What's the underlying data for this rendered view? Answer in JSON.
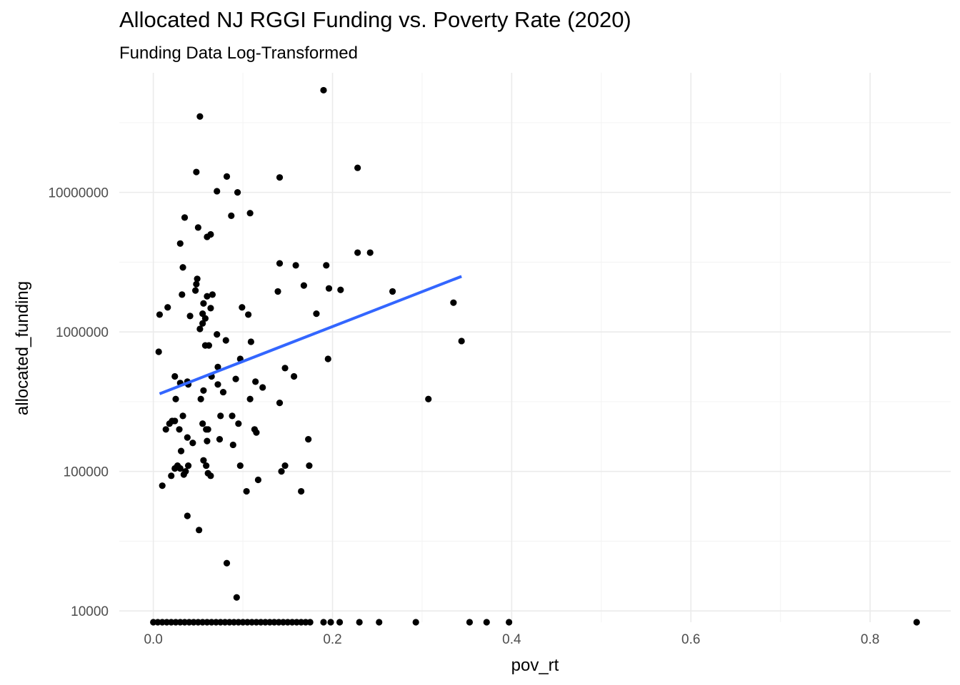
{
  "chart_data": {
    "type": "scatter",
    "title": "Allocated NJ RGGI Funding vs. Poverty Rate (2020)",
    "subtitle": "Funding Data Log-Transformed",
    "xlabel": "pov_rt",
    "ylabel": "allocated_funding",
    "x_scale": "linear",
    "y_scale": "log10",
    "xlim": [
      -0.038,
      0.89
    ],
    "ylim": [
      8300,
      72000000
    ],
    "x_ticks": [
      0.0,
      0.2,
      0.4,
      0.6,
      0.8
    ],
    "x_tick_labels": [
      "0.0",
      "0.2",
      "0.4",
      "0.6",
      "0.8"
    ],
    "y_ticks": [
      10000,
      100000,
      1000000,
      10000000
    ],
    "y_tick_labels": [
      "10000",
      "100000",
      "1000000",
      "10000000"
    ],
    "grid": true,
    "colors": {
      "points": "#000000",
      "trend_line": "#3366ff",
      "grid_major": "#ebebeb",
      "grid_minor": "#f3f3f3"
    },
    "series": [
      {
        "points": [
          [
            0.19,
            54000000
          ],
          [
            0.052,
            35000000
          ],
          [
            0.228,
            15000000
          ],
          [
            0.048,
            14000000
          ],
          [
            0.082,
            13000000
          ],
          [
            0.141,
            12800000
          ],
          [
            0.071,
            10200000
          ],
          [
            0.094,
            10000000
          ],
          [
            0.108,
            7100000
          ],
          [
            0.087,
            6800000
          ],
          [
            0.035,
            6600000
          ],
          [
            0.05,
            5600000
          ],
          [
            0.064,
            5000000
          ],
          [
            0.06,
            4800000
          ],
          [
            0.03,
            4300000
          ],
          [
            0.228,
            3700000
          ],
          [
            0.242,
            3700000
          ],
          [
            0.141,
            3100000
          ],
          [
            0.159,
            3000000
          ],
          [
            0.193,
            3000000
          ],
          [
            0.033,
            2900000
          ],
          [
            0.049,
            2400000
          ],
          [
            0.048,
            2200000
          ],
          [
            0.168,
            2150000
          ],
          [
            0.196,
            2050000
          ],
          [
            0.209,
            2000000
          ],
          [
            0.047,
            1980000
          ],
          [
            0.139,
            1950000
          ],
          [
            0.267,
            1950000
          ],
          [
            0.032,
            1850000
          ],
          [
            0.066,
            1850000
          ],
          [
            0.06,
            1800000
          ],
          [
            0.056,
            1600000
          ],
          [
            0.335,
            1620000
          ],
          [
            0.016,
            1500000
          ],
          [
            0.064,
            1480000
          ],
          [
            0.099,
            1500000
          ],
          [
            0.055,
            1350000
          ],
          [
            0.007,
            1330000
          ],
          [
            0.106,
            1330000
          ],
          [
            0.041,
            1300000
          ],
          [
            0.058,
            1250000
          ],
          [
            0.182,
            1350000
          ],
          [
            0.055,
            1150000
          ],
          [
            0.052,
            1050000
          ],
          [
            0.071,
            960000
          ],
          [
            0.081,
            870000
          ],
          [
            0.109,
            850000
          ],
          [
            0.344,
            860000
          ],
          [
            0.058,
            800000
          ],
          [
            0.062,
            800000
          ],
          [
            0.006,
            720000
          ],
          [
            0.097,
            640000
          ],
          [
            0.195,
            640000
          ],
          [
            0.072,
            560000
          ],
          [
            0.147,
            550000
          ],
          [
            0.065,
            480000
          ],
          [
            0.157,
            480000
          ],
          [
            0.024,
            480000
          ],
          [
            0.092,
            460000
          ],
          [
            0.114,
            440000
          ],
          [
            0.03,
            430000
          ],
          [
            0.038,
            440000
          ],
          [
            0.039,
            420000
          ],
          [
            0.072,
            420000
          ],
          [
            0.122,
            400000
          ],
          [
            0.056,
            380000
          ],
          [
            0.078,
            370000
          ],
          [
            0.053,
            330000
          ],
          [
            0.025,
            330000
          ],
          [
            0.108,
            330000
          ],
          [
            0.307,
            330000
          ],
          [
            0.141,
            310000
          ],
          [
            0.033,
            250000
          ],
          [
            0.075,
            250000
          ],
          [
            0.088,
            250000
          ],
          [
            0.021,
            230000
          ],
          [
            0.024,
            230000
          ],
          [
            0.018,
            220000
          ],
          [
            0.055,
            220000
          ],
          [
            0.095,
            220000
          ],
          [
            0.014,
            200000
          ],
          [
            0.029,
            200000
          ],
          [
            0.059,
            200000
          ],
          [
            0.061,
            200000
          ],
          [
            0.113,
            200000
          ],
          [
            0.115,
            190000
          ],
          [
            0.038,
            175000
          ],
          [
            0.074,
            170000
          ],
          [
            0.173,
            170000
          ],
          [
            0.06,
            165000
          ],
          [
            0.044,
            160000
          ],
          [
            0.089,
            155000
          ],
          [
            0.031,
            140000
          ],
          [
            0.056,
            120000
          ],
          [
            0.024,
            105000
          ],
          [
            0.027,
            110000
          ],
          [
            0.039,
            110000
          ],
          [
            0.059,
            110000
          ],
          [
            0.097,
            110000
          ],
          [
            0.147,
            110000
          ],
          [
            0.174,
            110000
          ],
          [
            0.03,
            105000
          ],
          [
            0.036,
            100000
          ],
          [
            0.143,
            100000
          ],
          [
            0.061,
            97000
          ],
          [
            0.034,
            95000
          ],
          [
            0.02,
            93000
          ],
          [
            0.064,
            93000
          ],
          [
            0.117,
            87000
          ],
          [
            0.01,
            79000
          ],
          [
            0.104,
            72000
          ],
          [
            0.165,
            72000
          ],
          [
            0.038,
            48000
          ],
          [
            0.051,
            38000
          ],
          [
            0.082,
            22000
          ],
          [
            0.093,
            12500
          ],
          [
            0.0,
            8300
          ],
          [
            0.005,
            8300
          ],
          [
            0.01,
            8300
          ],
          [
            0.015,
            8300
          ],
          [
            0.02,
            8300
          ],
          [
            0.025,
            8300
          ],
          [
            0.03,
            8300
          ],
          [
            0.035,
            8300
          ],
          [
            0.04,
            8300
          ],
          [
            0.045,
            8300
          ],
          [
            0.05,
            8300
          ],
          [
            0.055,
            8300
          ],
          [
            0.06,
            8300
          ],
          [
            0.065,
            8300
          ],
          [
            0.07,
            8300
          ],
          [
            0.075,
            8300
          ],
          [
            0.08,
            8300
          ],
          [
            0.085,
            8300
          ],
          [
            0.09,
            8300
          ],
          [
            0.095,
            8300
          ],
          [
            0.1,
            8300
          ],
          [
            0.105,
            8300
          ],
          [
            0.11,
            8300
          ],
          [
            0.115,
            8300
          ],
          [
            0.12,
            8300
          ],
          [
            0.125,
            8300
          ],
          [
            0.13,
            8300
          ],
          [
            0.135,
            8300
          ],
          [
            0.14,
            8300
          ],
          [
            0.145,
            8300
          ],
          [
            0.15,
            8300
          ],
          [
            0.155,
            8300
          ],
          [
            0.16,
            8300
          ],
          [
            0.165,
            8300
          ],
          [
            0.17,
            8300
          ],
          [
            0.175,
            8300
          ],
          [
            0.19,
            8300
          ],
          [
            0.198,
            8300
          ],
          [
            0.208,
            8300
          ],
          [
            0.23,
            8300
          ],
          [
            0.252,
            8300
          ],
          [
            0.293,
            8300
          ],
          [
            0.353,
            8300
          ],
          [
            0.372,
            8300
          ],
          [
            0.397,
            8300
          ],
          [
            0.852,
            8300
          ]
        ]
      }
    ],
    "trend_line": {
      "type": "linear fit (log10 y)",
      "x": [
        0.007,
        0.344
      ],
      "y": [
        360000,
        2500000
      ]
    }
  }
}
